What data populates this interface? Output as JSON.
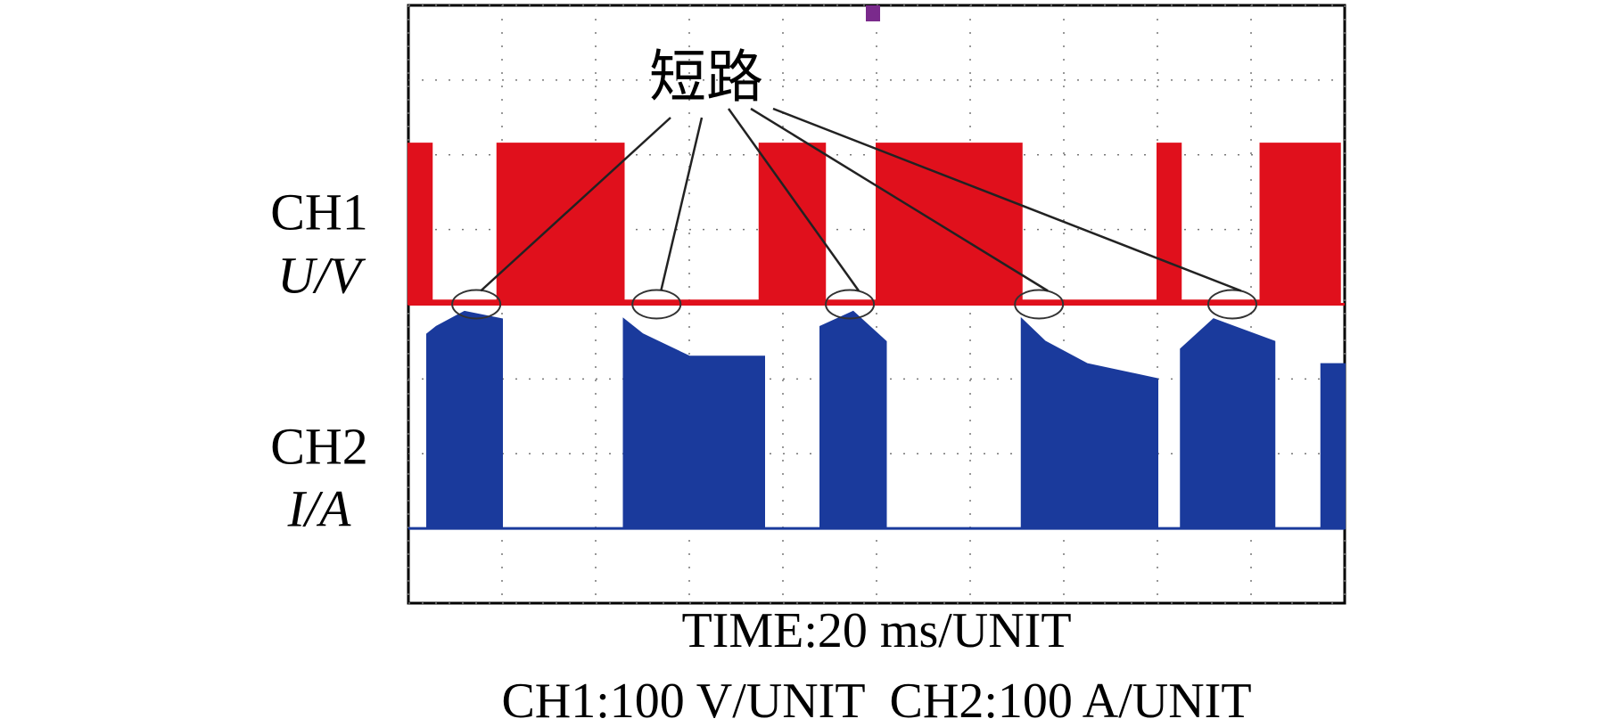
{
  "chart_data": {
    "type": "area",
    "annotation": {
      "text": "短路",
      "x": [
        14.5,
        53,
        94.3,
        134.7,
        176
      ]
    },
    "caption": [
      "TIME:20 ms/UNIT",
      "CH1:100 V/UNIT  CH2:100 A/UNIT"
    ],
    "xlim": [
      0,
      200
    ],
    "xticks": [
      0,
      20,
      40,
      60,
      80,
      100,
      120,
      140,
      160,
      180,
      200
    ],
    "grid": true,
    "series": [
      {
        "label": "CH1",
        "unit": "U/V",
        "color": "#e0101c",
        "ylim": [
          -400,
          400
        ],
        "yticks": [
          -400,
          -300,
          -200,
          -100,
          0,
          100,
          200,
          300,
          400
        ],
        "x": [
          0,
          5,
          5,
          19,
          19,
          46,
          46,
          75,
          75,
          89,
          89,
          100,
          100,
          131,
          131,
          160,
          160,
          165,
          165,
          182,
          182,
          199
        ],
        "values": [
          215,
          215,
          5,
          5,
          215,
          215,
          5,
          5,
          215,
          215,
          5,
          5,
          215,
          215,
          5,
          5,
          215,
          215,
          5,
          5,
          215,
          215
        ]
      },
      {
        "label": "CH2",
        "unit": "I/A",
        "color": "#1a3a9c",
        "ylim": [
          -100,
          700
        ],
        "x": [
          0,
          4,
          4,
          6,
          12,
          20,
          20,
          46,
          46,
          50,
          60,
          76,
          76,
          88,
          88,
          95,
          102,
          102,
          131,
          131,
          136,
          145,
          160,
          160,
          165,
          165,
          172,
          185,
          185,
          195,
          195,
          200
        ],
        "values": [
          0,
          0,
          260,
          270,
          290,
          280,
          0,
          0,
          280,
          260,
          230,
          230,
          0,
          0,
          270,
          290,
          250,
          0,
          0,
          280,
          250,
          220,
          200,
          0,
          0,
          240,
          280,
          250,
          0,
          0,
          220,
          220
        ]
      }
    ]
  }
}
